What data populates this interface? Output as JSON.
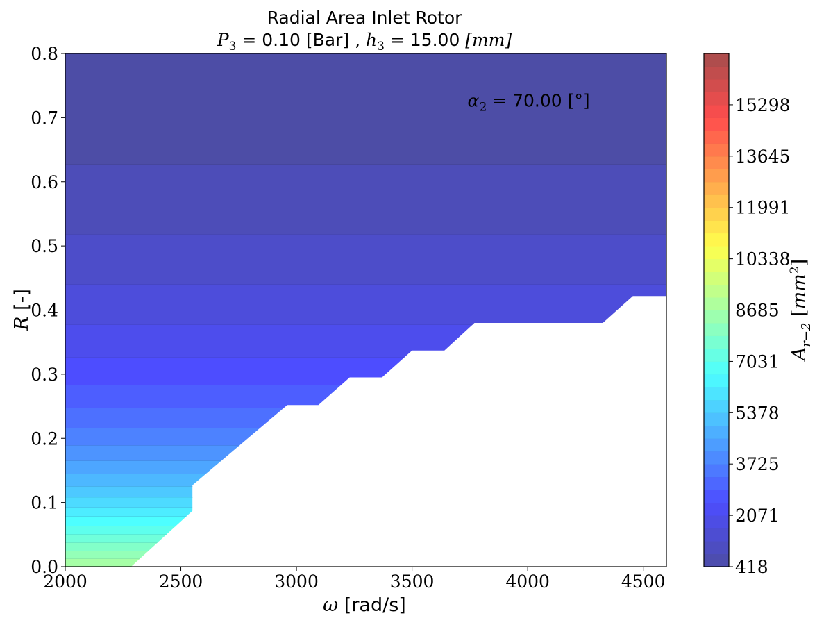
{
  "chart_data": {
    "type": "heatmap",
    "plot_kind": "filled-contour",
    "title": "Radial Area Inlet Rotor",
    "subtitle": "P3 = 0.10 [Bar] , h3 = 15.00 [mm]",
    "subtitle_parts": {
      "p_symbol": "P",
      "p_sub": "3",
      "p_value": " = 0.10 [Bar] , ",
      "h_symbol": "h",
      "h_sub": "3",
      "h_value": " = 15.00 ",
      "h_unit": "[mm]"
    },
    "xlabel": "ω [rad/s]",
    "xlabel_parts": {
      "symbol": "ω",
      "unit": " [rad/s]"
    },
    "ylabel": "R [-]",
    "ylabel_parts": {
      "symbol": "R",
      "unit": " [-]"
    },
    "xlim": [
      2000,
      4600
    ],
    "ylim": [
      0.0,
      0.8
    ],
    "x_ticks": [
      2000,
      2500,
      3000,
      3500,
      4000,
      4500
    ],
    "x_tick_labels": [
      "2000",
      "2500",
      "3000",
      "3500",
      "4000",
      "4500"
    ],
    "y_ticks": [
      0.0,
      0.1,
      0.2,
      0.3,
      0.4,
      0.5,
      0.6,
      0.7,
      0.8
    ],
    "y_tick_labels": [
      "0.0",
      "0.1",
      "0.2",
      "0.3",
      "0.4",
      "0.5",
      "0.6",
      "0.7",
      "0.8"
    ],
    "annotation": {
      "text": "α2 = 70.00 [°]",
      "symbol": "α",
      "sub": "2",
      "value": " = 70.00 [°]",
      "x": 3740,
      "y": 0.727
    },
    "colorbar": {
      "label": "A r−2 [mm²]",
      "label_parts": {
        "symbol": "A",
        "sub": "r−2",
        "unit_open": " [",
        "unit": "mm",
        "unit_sup": "2",
        "unit_close": "]"
      },
      "colormap": "jet",
      "alpha": 0.7,
      "vmin": 418,
      "vmax": 16952,
      "levels": 40,
      "ticks": [
        418,
        2071,
        3725,
        5378,
        7031,
        8685,
        10338,
        11991,
        13645,
        15298
      ],
      "tick_labels": [
        "418",
        "2071",
        "3725",
        "5378",
        "7031",
        "8685",
        "10338",
        "11991",
        "13645",
        "15298"
      ]
    },
    "valid_region_boundary": [
      [
        2285,
        0.0
      ],
      [
        2550,
        0.087
      ],
      [
        2550,
        0.127
      ],
      [
        2960,
        0.252
      ],
      [
        3095,
        0.252
      ],
      [
        3230,
        0.295
      ],
      [
        3370,
        0.295
      ],
      [
        3500,
        0.337
      ],
      [
        3640,
        0.337
      ],
      [
        3770,
        0.38
      ],
      [
        4325,
        0.38
      ],
      [
        4455,
        0.422
      ],
      [
        4600,
        0.422
      ],
      [
        4600,
        0.8
      ],
      [
        2000,
        0.8
      ],
      [
        2000,
        0.0
      ]
    ],
    "contour_bands": [
      {
        "r_min": 0.627,
        "r_max": 0.8,
        "value": 418
      },
      {
        "r_min": 0.518,
        "r_max": 0.627,
        "value": 830
      },
      {
        "r_min": 0.44,
        "r_max": 0.518,
        "value": 1245
      },
      {
        "r_min": 0.377,
        "r_max": 0.44,
        "value": 1657
      },
      {
        "r_min": 0.326,
        "r_max": 0.377,
        "value": 2071
      },
      {
        "r_min": 0.283,
        "r_max": 0.326,
        "value": 2485
      },
      {
        "r_min": 0.247,
        "r_max": 0.283,
        "value": 2898
      },
      {
        "r_min": 0.216,
        "r_max": 0.247,
        "value": 3310
      },
      {
        "r_min": 0.189,
        "r_max": 0.216,
        "value": 3725
      },
      {
        "r_min": 0.165,
        "r_max": 0.189,
        "value": 4138
      },
      {
        "r_min": 0.144,
        "r_max": 0.165,
        "value": 4552
      },
      {
        "r_min": 0.125,
        "r_max": 0.144,
        "value": 4965
      },
      {
        "r_min": 0.108,
        "r_max": 0.125,
        "value": 5378
      },
      {
        "r_min": 0.092,
        "r_max": 0.108,
        "value": 5791
      },
      {
        "r_min": 0.078,
        "r_max": 0.092,
        "value": 6205
      },
      {
        "r_min": 0.063,
        "r_max": 0.078,
        "value": 6618
      },
      {
        "r_min": 0.05,
        "r_max": 0.063,
        "value": 7031
      },
      {
        "r_min": 0.037,
        "r_max": 0.05,
        "value": 7444
      },
      {
        "r_min": 0.024,
        "r_max": 0.037,
        "value": 7858
      },
      {
        "r_min": 0.012,
        "r_max": 0.024,
        "value": 8271
      },
      {
        "r_min": 0.0,
        "r_max": 0.012,
        "value": 8685
      }
    ]
  }
}
